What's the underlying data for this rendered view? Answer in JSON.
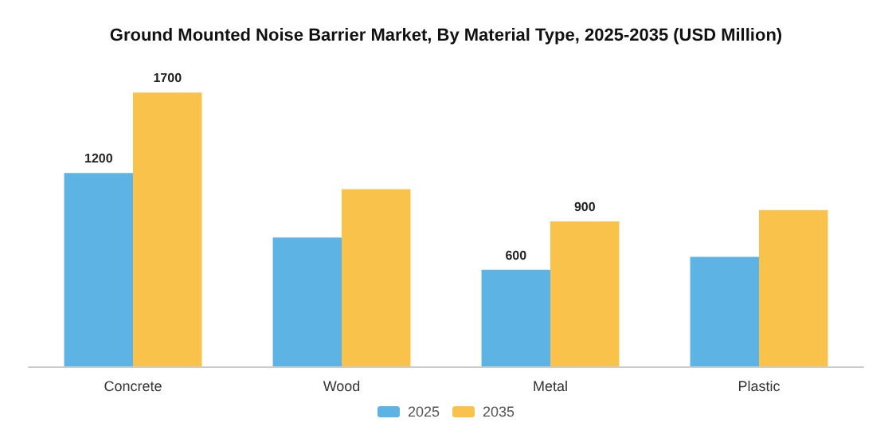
{
  "chart_data": {
    "type": "bar",
    "title": "Ground Mounted Noise Barrier Market, By Material Type, 2025-2035 (USD Million)",
    "categories": [
      "Concrete",
      "Wood",
      "Metal",
      "Plastic"
    ],
    "series": [
      {
        "name": "2025",
        "color": "#5db3e4",
        "values": [
          1200,
          800,
          600,
          680
        ],
        "value_labels": [
          "1200",
          null,
          "600",
          null
        ]
      },
      {
        "name": "2035",
        "color": "#f9c24a",
        "values": [
          1700,
          1100,
          900,
          970
        ],
        "value_labels": [
          "1700",
          null,
          "900",
          null
        ]
      }
    ],
    "legend": "bottom",
    "tick_labels": "x"
  }
}
